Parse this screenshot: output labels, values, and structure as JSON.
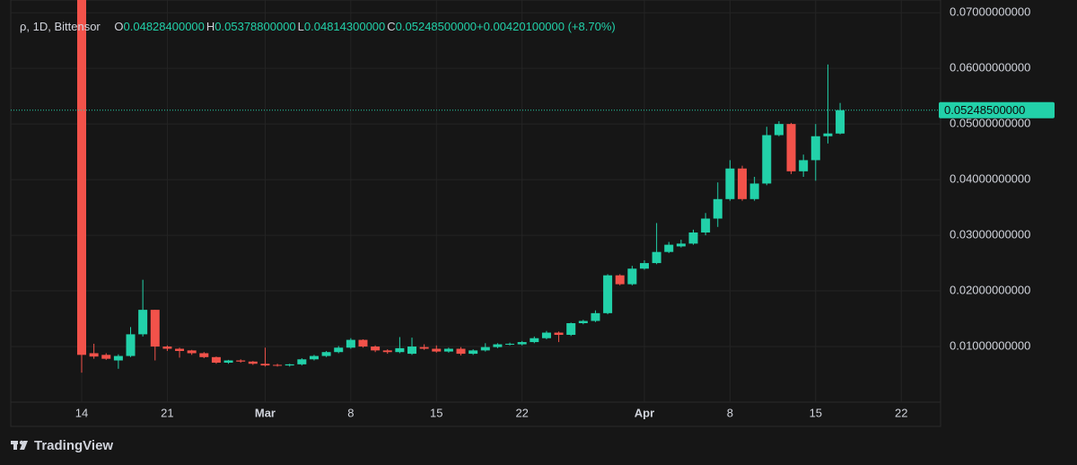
{
  "chart_data": {
    "type": "candlestick",
    "symbol": "ρ, 1D, Bittensor",
    "ohlc_legend": [
      {
        "label": "O",
        "value": "0.04828400000"
      },
      {
        "label": "H",
        "value": "0.05378800000"
      },
      {
        "label": "L",
        "value": "0.04814300000"
      },
      {
        "label": "C",
        "value": "0.05248500000"
      }
    ],
    "change": "+0.00420100000 (+8.70%)",
    "brand": "TradingView",
    "up_color": "#22d1a9",
    "down_color": "#f2524a",
    "categories": [
      "14",
      null,
      null,
      null,
      null,
      null,
      null,
      "21",
      null,
      null,
      null,
      null,
      null,
      null,
      null,
      "Mar",
      null,
      null,
      null,
      null,
      null,
      null,
      "8",
      null,
      null,
      null,
      null,
      null,
      null,
      "15",
      null,
      null,
      null,
      null,
      null,
      null,
      "22",
      null,
      null,
      null,
      null,
      null,
      null,
      null,
      null,
      null,
      "Apr",
      null,
      null,
      null,
      null,
      null,
      null,
      "8",
      null,
      null,
      null,
      null,
      null,
      null,
      "15",
      null,
      null,
      null,
      null,
      null,
      null,
      "22"
    ],
    "open": [
      0.09,
      0.0088,
      0.0085,
      0.0075,
      0.0083,
      0.0122,
      0.0166,
      0.01,
      0.0096,
      0.0093,
      0.0088,
      0.0081,
      0.0071,
      0.0075,
      0.0073,
      0.0069,
      0.0067,
      0.0066,
      0.0068,
      0.0077,
      0.0083,
      0.009,
      0.0098,
      0.0112,
      0.01,
      0.0093,
      0.009,
      0.0087,
      0.0099,
      0.0096,
      0.0091,
      0.0096,
      0.0087,
      0.0093,
      0.0099,
      0.0104,
      0.0104,
      0.0108,
      0.0115,
      0.0125,
      0.0121,
      0.0142,
      0.0146,
      0.016,
      0.0228,
      0.0212,
      0.024,
      0.025,
      0.027,
      0.028,
      0.0285,
      0.0305,
      0.033,
      0.0365,
      0.042,
      0.0365,
      0.0393,
      0.048,
      0.05,
      0.0415,
      0.0435,
      0.0478,
      0.048284,
      null,
      null,
      null,
      null,
      null
    ],
    "high": [
      0.09,
      0.0105,
      0.0088,
      0.0086,
      0.0135,
      0.022,
      0.0166,
      0.0102,
      0.0098,
      0.0094,
      0.009,
      0.0082,
      0.0076,
      0.0077,
      0.0074,
      0.0098,
      0.0069,
      0.0069,
      0.0079,
      0.0085,
      0.0092,
      0.0101,
      0.0115,
      0.0113,
      0.0102,
      0.0095,
      0.0117,
      0.0116,
      0.0104,
      0.0102,
      0.0098,
      0.0099,
      0.0095,
      0.0106,
      0.0106,
      0.0107,
      0.011,
      0.0118,
      0.0128,
      0.0127,
      0.0143,
      0.0148,
      0.0165,
      0.023,
      0.023,
      0.0245,
      0.0255,
      0.0322,
      0.0288,
      0.0292,
      0.031,
      0.034,
      0.0395,
      0.0435,
      0.0425,
      0.0405,
      0.0495,
      0.0505,
      0.0502,
      0.0445,
      0.05,
      0.0607,
      0.053788,
      null,
      null,
      null,
      null,
      null
    ],
    "low": [
      0.0053,
      0.0078,
      0.0076,
      0.006,
      0.0081,
      0.0118,
      0.0075,
      0.0092,
      0.008,
      0.0085,
      0.0079,
      0.0069,
      0.0069,
      0.0071,
      0.0067,
      0.0064,
      0.0064,
      0.0064,
      0.0066,
      0.0075,
      0.0081,
      0.0088,
      0.0096,
      0.0098,
      0.009,
      0.0087,
      0.0088,
      0.0085,
      0.0094,
      0.0089,
      0.0089,
      0.0084,
      0.0085,
      0.0091,
      0.0097,
      0.0102,
      0.0102,
      0.0106,
      0.0113,
      0.0108,
      0.0119,
      0.014,
      0.0144,
      0.0158,
      0.021,
      0.021,
      0.0238,
      0.0248,
      0.0268,
      0.0278,
      0.0283,
      0.03,
      0.0315,
      0.0362,
      0.0362,
      0.0362,
      0.039,
      0.0478,
      0.041,
      0.0405,
      0.0398,
      0.0465,
      0.048143,
      null,
      null,
      null,
      null,
      null
    ],
    "close": [
      0.0085,
      0.0082,
      0.0078,
      0.0083,
      0.0122,
      0.0166,
      0.01,
      0.0096,
      0.0092,
      0.0088,
      0.0081,
      0.0071,
      0.0075,
      0.0073,
      0.0069,
      0.0066,
      0.0066,
      0.0068,
      0.0077,
      0.0083,
      0.009,
      0.0098,
      0.0112,
      0.01,
      0.0093,
      0.009,
      0.0097,
      0.01,
      0.0096,
      0.0091,
      0.0096,
      0.0087,
      0.0093,
      0.0099,
      0.0104,
      0.0105,
      0.0108,
      0.0115,
      0.0125,
      0.0121,
      0.0142,
      0.0146,
      0.016,
      0.0228,
      0.0212,
      0.024,
      0.025,
      0.027,
      0.0283,
      0.0285,
      0.0305,
      0.033,
      0.0365,
      0.042,
      0.0365,
      0.0393,
      0.048,
      0.05,
      0.0415,
      0.0435,
      0.0478,
      0.0483,
      0.052485,
      null,
      null,
      null,
      null,
      null
    ],
    "ylim": [
      0,
      0.071
    ],
    "yticks": [
      {
        "value": 0.01,
        "label": "0.01000000000"
      },
      {
        "value": 0.02,
        "label": "0.02000000000"
      },
      {
        "value": 0.03,
        "label": "0.03000000000"
      },
      {
        "value": 0.04,
        "label": "0.04000000000"
      },
      {
        "value": 0.05,
        "label": "0.05000000000"
      },
      {
        "value": 0.06,
        "label": "0.06000000000"
      },
      {
        "value": 0.07,
        "label": "0.07000000000"
      }
    ],
    "last_price": {
      "value": 0.052485,
      "label": "0.05248500000"
    },
    "grid": true
  }
}
